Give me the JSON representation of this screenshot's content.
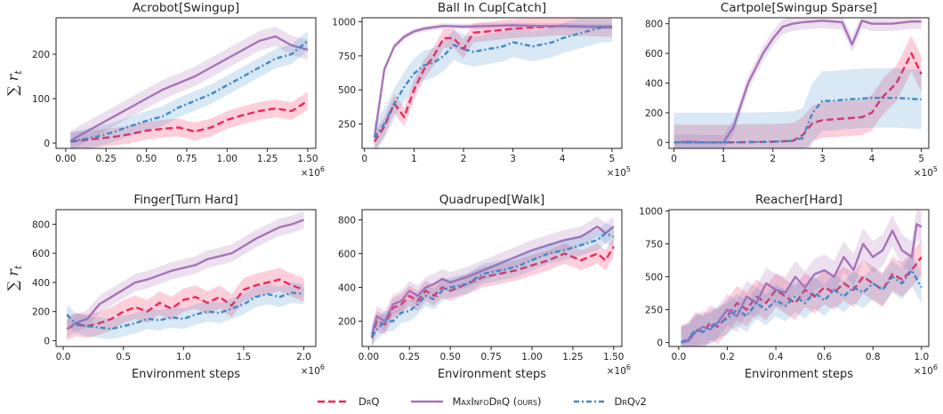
{
  "colors": {
    "drq": "#f5245a",
    "maxinfo": "#a872b8",
    "drqv2": "#3e8ac8"
  },
  "ylabel": "∑ r_t",
  "legend": [
    {
      "key": "drq",
      "label": "DrQ",
      "style": "dashed"
    },
    {
      "key": "maxinfo",
      "label": "MaxInfoDrQ (ours)",
      "style": "solid"
    },
    {
      "key": "drqv2",
      "label": "DrQv2",
      "style": "dashdot"
    }
  ],
  "chart_data": [
    {
      "title": "Acrobot[Swingup]",
      "type": "line",
      "xlim": [
        -0.06,
        1.55
      ],
      "xticks": [
        0,
        0.25,
        0.5,
        0.75,
        1.0,
        1.25,
        1.5
      ],
      "xticklabels": [
        "0.00",
        "0.25",
        "0.50",
        "0.75",
        "1.00",
        "1.25",
        "1.50"
      ],
      "xmult": "×10^6",
      "xlabel": "",
      "ylim": [
        -12,
        282
      ],
      "yticks": [
        0,
        100,
        200
      ],
      "yticklabels": [
        "0",
        "100",
        "200"
      ],
      "series": [
        {
          "name": "DrQ",
          "x": [
            0.03,
            0.1,
            0.2,
            0.3,
            0.4,
            0.5,
            0.6,
            0.7,
            0.8,
            0.9,
            1.0,
            1.1,
            1.2,
            1.3,
            1.4,
            1.5
          ],
          "y": [
            3,
            6,
            10,
            14,
            20,
            28,
            32,
            35,
            26,
            35,
            52,
            63,
            72,
            78,
            72,
            95
          ],
          "band": 20
        },
        {
          "name": "MaxInfoDrQ (ours)",
          "x": [
            0.03,
            0.1,
            0.2,
            0.3,
            0.4,
            0.5,
            0.6,
            0.7,
            0.8,
            0.9,
            1.0,
            1.1,
            1.2,
            1.3,
            1.4,
            1.5
          ],
          "y": [
            5,
            20,
            40,
            60,
            80,
            100,
            120,
            135,
            150,
            170,
            190,
            210,
            230,
            240,
            220,
            210
          ],
          "band": 22
        },
        {
          "name": "DrQv2",
          "x": [
            0.03,
            0.1,
            0.2,
            0.3,
            0.4,
            0.5,
            0.6,
            0.7,
            0.8,
            0.9,
            1.0,
            1.1,
            1.2,
            1.3,
            1.4,
            1.5
          ],
          "y": [
            3,
            8,
            15,
            25,
            38,
            50,
            60,
            80,
            95,
            110,
            130,
            150,
            170,
            190,
            200,
            230
          ],
          "band": 22
        }
      ]
    },
    {
      "title": "Ball In Cup[Catch]",
      "type": "line",
      "xlim": [
        -0.05,
        5.2
      ],
      "xticks": [
        0,
        1,
        2,
        3,
        4,
        5
      ],
      "xticklabels": [
        "0",
        "1",
        "2",
        "3",
        "4",
        "5"
      ],
      "xmult": "×10^5",
      "xlabel": "",
      "ylim": [
        70,
        1030
      ],
      "yticks": [
        250,
        500,
        750,
        1000
      ],
      "yticklabels": [
        "250",
        "500",
        "750",
        "1000"
      ],
      "series": [
        {
          "name": "DrQ",
          "x": [
            0.2,
            0.4,
            0.6,
            0.8,
            1.0,
            1.2,
            1.4,
            1.6,
            1.8,
            2.0,
            2.2,
            2.5,
            3.0,
            3.5,
            4.0,
            4.5,
            5.0
          ],
          "y": [
            120,
            230,
            400,
            300,
            500,
            650,
            750,
            880,
            880,
            800,
            920,
            930,
            950,
            960,
            970,
            965,
            960
          ],
          "band": 70
        },
        {
          "name": "MaxInfoDrQ (ours)",
          "x": [
            0.2,
            0.4,
            0.6,
            0.8,
            1.0,
            1.2,
            1.4,
            1.6,
            2.0,
            2.5,
            3.0,
            3.5,
            4.0,
            4.5,
            5.0
          ],
          "y": [
            150,
            650,
            820,
            890,
            930,
            950,
            960,
            970,
            965,
            970,
            975,
            970,
            970,
            965,
            965
          ],
          "band": 20
        },
        {
          "name": "DrQv2",
          "x": [
            0.2,
            0.4,
            0.6,
            0.8,
            1.0,
            1.2,
            1.4,
            1.6,
            1.8,
            2.0,
            2.2,
            2.5,
            2.8,
            3.0,
            3.4,
            3.8,
            4.0,
            4.4,
            4.8,
            5.0
          ],
          "y": [
            150,
            250,
            400,
            520,
            620,
            680,
            700,
            750,
            830,
            800,
            780,
            800,
            820,
            850,
            820,
            850,
            880,
            920,
            960,
            960
          ],
          "band": 110
        }
      ]
    },
    {
      "title": "Cartpole[Swingup Sparse]",
      "type": "line",
      "xlim": [
        -0.1,
        5.15
      ],
      "xticks": [
        0,
        1,
        2,
        3,
        4,
        5
      ],
      "xticklabels": [
        "0",
        "1",
        "2",
        "3",
        "4",
        "5"
      ],
      "xmult": "×10^5",
      "xlabel": "",
      "ylim": [
        -40,
        840
      ],
      "yticks": [
        0,
        200,
        400,
        600,
        800
      ],
      "yticklabels": [
        "0",
        "200",
        "400",
        "600",
        "800"
      ],
      "series": [
        {
          "name": "DrQ",
          "x": [
            0,
            0.5,
            1.0,
            1.5,
            2.0,
            2.4,
            2.6,
            2.8,
            3.0,
            3.4,
            3.8,
            4.0,
            4.2,
            4.5,
            4.8,
            5.0
          ],
          "y": [
            0,
            0,
            0,
            2,
            5,
            10,
            50,
            130,
            150,
            160,
            170,
            200,
            300,
            400,
            600,
            460
          ],
          "band": 120
        },
        {
          "name": "MaxInfoDrQ (ours)",
          "x": [
            0,
            0.3,
            0.6,
            1.0,
            1.2,
            1.5,
            1.8,
            2.0,
            2.2,
            2.4,
            2.6,
            3.0,
            3.4,
            3.6,
            3.8,
            4.0,
            4.4,
            4.8,
            5.0
          ],
          "y": [
            0,
            5,
            0,
            0,
            100,
            400,
            600,
            700,
            780,
            800,
            810,
            820,
            810,
            660,
            820,
            800,
            800,
            815,
            815
          ],
          "band": 50
        },
        {
          "name": "DrQv2",
          "x": [
            0,
            0.5,
            1.0,
            1.5,
            2.0,
            2.4,
            2.6,
            2.8,
            3.0,
            3.2,
            3.5,
            4.0,
            4.5,
            5.0
          ],
          "y": [
            0,
            0,
            0,
            2,
            5,
            10,
            30,
            200,
            280,
            280,
            290,
            300,
            300,
            290
          ],
          "band": 200
        }
      ]
    },
    {
      "title": "Finger[Turn Hard]",
      "type": "line",
      "xlim": [
        -0.06,
        2.1
      ],
      "xticks": [
        0,
        0.5,
        1.0,
        1.5,
        2.0
      ],
      "xticklabels": [
        "0.0",
        "0.5",
        "1.0",
        "1.5",
        "2.0"
      ],
      "xmult": "×10^6",
      "xlabel": "Environment steps",
      "ylim": [
        -40,
        900
      ],
      "yticks": [
        0,
        200,
        400,
        600,
        800
      ],
      "yticklabels": [
        "0",
        "200",
        "400",
        "600",
        "800"
      ],
      "series": [
        {
          "name": "DrQ",
          "x": [
            0.03,
            0.1,
            0.2,
            0.3,
            0.4,
            0.5,
            0.6,
            0.7,
            0.8,
            0.9,
            1.0,
            1.1,
            1.2,
            1.3,
            1.4,
            1.5,
            1.6,
            1.7,
            1.8,
            1.9,
            2.0
          ],
          "y": [
            80,
            110,
            100,
            120,
            150,
            200,
            230,
            200,
            260,
            220,
            280,
            300,
            260,
            300,
            240,
            350,
            380,
            400,
            420,
            380,
            350
          ],
          "band": 80
        },
        {
          "name": "MaxInfoDrQ (ours)",
          "x": [
            0.03,
            0.1,
            0.2,
            0.3,
            0.4,
            0.5,
            0.6,
            0.7,
            0.8,
            0.9,
            1.0,
            1.1,
            1.2,
            1.3,
            1.4,
            1.5,
            1.6,
            1.7,
            1.8,
            1.9,
            2.0
          ],
          "y": [
            80,
            120,
            150,
            250,
            300,
            350,
            400,
            420,
            450,
            480,
            500,
            520,
            560,
            580,
            600,
            650,
            700,
            740,
            780,
            800,
            830
          ],
          "band": 60
        },
        {
          "name": "DrQv2",
          "x": [
            0.03,
            0.1,
            0.2,
            0.3,
            0.4,
            0.5,
            0.6,
            0.7,
            0.8,
            0.9,
            1.0,
            1.1,
            1.2,
            1.3,
            1.4,
            1.5,
            1.6,
            1.7,
            1.8,
            1.9,
            2.0
          ],
          "y": [
            180,
            120,
            100,
            90,
            80,
            100,
            120,
            150,
            140,
            160,
            150,
            180,
            200,
            190,
            220,
            250,
            300,
            320,
            300,
            330,
            320
          ],
          "band": 70
        }
      ]
    },
    {
      "title": "Quadruped[Walk]",
      "type": "line",
      "xlim": [
        -0.04,
        1.55
      ],
      "xticks": [
        0,
        0.25,
        0.5,
        0.75,
        1.0,
        1.25,
        1.5
      ],
      "xticklabels": [
        "0.00",
        "0.25",
        "0.50",
        "0.75",
        "1.00",
        "1.25",
        "1.50"
      ],
      "xmult": "×10^6",
      "xlabel": "Environment steps",
      "ylim": [
        50,
        860
      ],
      "yticks": [
        200,
        400,
        600,
        800
      ],
      "yticklabels": [
        "200",
        "400",
        "600",
        "800"
      ],
      "series": [
        {
          "name": "DrQ",
          "x": [
            0.02,
            0.05,
            0.1,
            0.15,
            0.2,
            0.25,
            0.3,
            0.35,
            0.4,
            0.45,
            0.5,
            0.6,
            0.7,
            0.8,
            0.9,
            1.0,
            1.1,
            1.2,
            1.3,
            1.4,
            1.45,
            1.5
          ],
          "y": [
            100,
            200,
            180,
            280,
            300,
            350,
            320,
            380,
            350,
            400,
            380,
            420,
            460,
            480,
            500,
            530,
            560,
            600,
            560,
            600,
            560,
            640
          ],
          "band": 60
        },
        {
          "name": "MaxInfoDrQ (ours)",
          "x": [
            0.02,
            0.05,
            0.1,
            0.15,
            0.2,
            0.25,
            0.3,
            0.35,
            0.4,
            0.45,
            0.5,
            0.6,
            0.7,
            0.8,
            0.9,
            1.0,
            1.1,
            1.2,
            1.3,
            1.4,
            1.45,
            1.5
          ],
          "y": [
            120,
            230,
            200,
            300,
            320,
            380,
            350,
            400,
            420,
            450,
            430,
            460,
            500,
            540,
            580,
            620,
            650,
            680,
            700,
            760,
            720,
            760
          ],
          "band": 60
        },
        {
          "name": "DrQv2",
          "x": [
            0.02,
            0.05,
            0.1,
            0.15,
            0.2,
            0.25,
            0.3,
            0.35,
            0.4,
            0.45,
            0.5,
            0.6,
            0.7,
            0.8,
            0.9,
            1.0,
            1.1,
            1.2,
            1.3,
            1.4,
            1.45,
            1.5
          ],
          "y": [
            110,
            150,
            200,
            200,
            250,
            260,
            300,
            350,
            330,
            380,
            400,
            420,
            480,
            500,
            520,
            560,
            600,
            620,
            650,
            680,
            720,
            700
          ],
          "band": 60
        }
      ]
    },
    {
      "title": "Reacher[Hard]",
      "type": "line",
      "xlim": [
        -0.04,
        1.03
      ],
      "xticks": [
        0,
        0.2,
        0.4,
        0.6,
        0.8,
        1.0
      ],
      "xticklabels": [
        "0.0",
        "0.2",
        "0.4",
        "0.6",
        "0.8",
        "1.0"
      ],
      "xmult": "×10^6",
      "xlabel": "Environment steps",
      "ylim": [
        -30,
        1010
      ],
      "yticks": [
        0,
        250,
        500,
        750,
        1000
      ],
      "yticklabels": [
        "0",
        "250",
        "500",
        "750",
        "1000"
      ],
      "series": [
        {
          "name": "DrQ",
          "x": [
            0.01,
            0.04,
            0.07,
            0.1,
            0.13,
            0.16,
            0.2,
            0.24,
            0.28,
            0.32,
            0.36,
            0.4,
            0.44,
            0.48,
            0.52,
            0.56,
            0.6,
            0.64,
            0.68,
            0.72,
            0.76,
            0.8,
            0.84,
            0.88,
            0.92,
            0.96,
            1.0
          ],
          "y": [
            0,
            20,
            100,
            80,
            150,
            120,
            200,
            300,
            250,
            350,
            300,
            400,
            350,
            300,
            400,
            350,
            420,
            380,
            450,
            400,
            500,
            450,
            400,
            520,
            480,
            550,
            650
          ],
          "band": 130
        },
        {
          "name": "MaxInfoDrQ (ours)",
          "x": [
            0.01,
            0.04,
            0.07,
            0.1,
            0.13,
            0.16,
            0.2,
            0.24,
            0.28,
            0.32,
            0.36,
            0.4,
            0.44,
            0.48,
            0.52,
            0.56,
            0.6,
            0.64,
            0.68,
            0.72,
            0.76,
            0.8,
            0.84,
            0.88,
            0.92,
            0.96,
            0.98,
            1.0
          ],
          "y": [
            0,
            10,
            80,
            120,
            100,
            150,
            250,
            200,
            350,
            300,
            450,
            400,
            380,
            500,
            420,
            520,
            550,
            500,
            650,
            550,
            750,
            650,
            700,
            850,
            700,
            650,
            900,
            880
          ],
          "band": 120
        },
        {
          "name": "DrQv2",
          "x": [
            0.01,
            0.04,
            0.07,
            0.1,
            0.13,
            0.16,
            0.2,
            0.24,
            0.28,
            0.32,
            0.36,
            0.4,
            0.44,
            0.48,
            0.52,
            0.56,
            0.6,
            0.64,
            0.68,
            0.72,
            0.76,
            0.8,
            0.84,
            0.88,
            0.92,
            0.96,
            1.0
          ],
          "y": [
            0,
            30,
            100,
            80,
            120,
            150,
            180,
            250,
            200,
            300,
            250,
            320,
            280,
            350,
            300,
            380,
            320,
            400,
            350,
            420,
            380,
            450,
            400,
            500,
            450,
            550,
            420
          ],
          "band": 120
        }
      ]
    }
  ]
}
